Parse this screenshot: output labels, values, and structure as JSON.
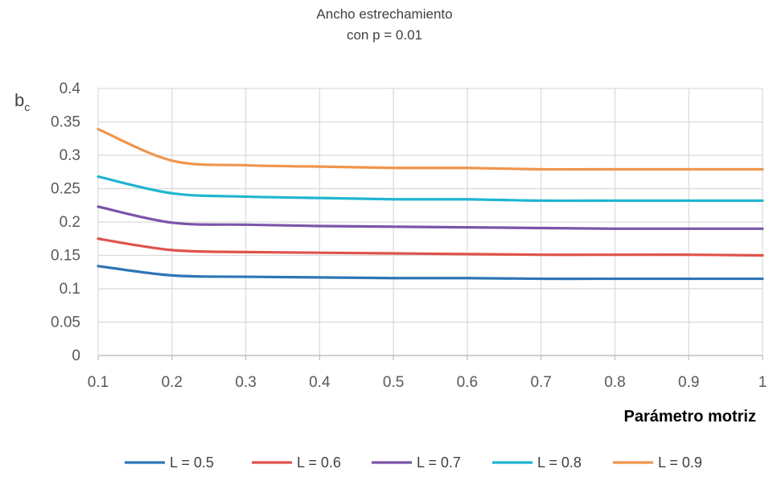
{
  "chart_data": {
    "type": "line",
    "title_line1": "Ancho estrechamiento",
    "title_line2": "con p = 0.01",
    "xlabel": "Parámetro motriz",
    "ylabel_main": "b",
    "ylabel_sub": "c",
    "x": [
      0.1,
      0.2,
      0.3,
      0.4,
      0.5,
      0.6,
      0.7,
      0.8,
      0.9,
      1.0
    ],
    "xticks": [
      "0.1",
      "0.2",
      "0.3",
      "0.4",
      "0.5",
      "0.6",
      "0.7",
      "0.8",
      "0.9",
      "1"
    ],
    "yticks": [
      "0",
      "0.05",
      "0.1",
      "0.15",
      "0.2",
      "0.25",
      "0.3",
      "0.35",
      "0.4"
    ],
    "xlim": [
      0.1,
      1.0
    ],
    "ylim": [
      0,
      0.4
    ],
    "grid": true,
    "legend_position": "bottom",
    "series": [
      {
        "name": "L = 0.5",
        "color": "#2e75b6",
        "values": [
          0.134,
          0.12,
          0.118,
          0.117,
          0.116,
          0.116,
          0.115,
          0.115,
          0.115,
          0.115
        ]
      },
      {
        "name": "L = 0.6",
        "color": "#e0524a",
        "values": [
          0.175,
          0.158,
          0.155,
          0.154,
          0.153,
          0.152,
          0.151,
          0.151,
          0.151,
          0.15
        ]
      },
      {
        "name": "L = 0.7",
        "color": "#7a55a8",
        "values": [
          0.223,
          0.199,
          0.196,
          0.194,
          0.193,
          0.192,
          0.191,
          0.19,
          0.19,
          0.19
        ]
      },
      {
        "name": "L = 0.8",
        "color": "#1fb5d0",
        "values": [
          0.268,
          0.243,
          0.238,
          0.236,
          0.234,
          0.234,
          0.232,
          0.232,
          0.232,
          0.232
        ]
      },
      {
        "name": "L = 0.9",
        "color": "#f0954b",
        "values": [
          0.339,
          0.292,
          0.285,
          0.283,
          0.281,
          0.281,
          0.279,
          0.279,
          0.279,
          0.279
        ]
      }
    ]
  }
}
